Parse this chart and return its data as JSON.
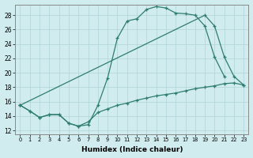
{
  "xlabel": "Humidex (Indice chaleur)",
  "bg_color": "#d0ecee",
  "line_color": "#2e7d6e",
  "grid_color": "#b0d4d8",
  "xlim": [
    -0.5,
    23.5
  ],
  "ylim": [
    11.5,
    29.5
  ],
  "xticks": [
    0,
    1,
    2,
    3,
    4,
    5,
    6,
    7,
    8,
    9,
    10,
    11,
    12,
    13,
    14,
    15,
    16,
    17,
    18,
    19,
    20,
    21,
    22,
    23
  ],
  "yticks": [
    12,
    14,
    16,
    18,
    20,
    22,
    24,
    26,
    28
  ],
  "series": [
    {
      "x": [
        0,
        1,
        2,
        3,
        4,
        5,
        6,
        7,
        8,
        9,
        10,
        11,
        12,
        13,
        14,
        15,
        16,
        17,
        18,
        19,
        20,
        21
      ],
      "y": [
        15.5,
        14.7,
        13.8,
        14.2,
        14.2,
        13.0,
        12.6,
        12.8,
        15.5,
        19.3,
        24.8,
        27.2,
        27.5,
        28.8,
        29.2,
        29.0,
        28.3,
        28.2,
        28.0,
        26.5,
        22.2,
        19.5
      ]
    },
    {
      "x": [
        0,
        1,
        2,
        3,
        4,
        5,
        6,
        7,
        8,
        9,
        10,
        11,
        12,
        13,
        14,
        15,
        16,
        17,
        18,
        19,
        20,
        21,
        22,
        23
      ],
      "y": [
        15.5,
        14.7,
        13.8,
        14.2,
        14.2,
        13.0,
        12.6,
        13.2,
        14.5,
        15.0,
        15.5,
        15.8,
        16.2,
        16.5,
        16.8,
        17.0,
        17.2,
        17.5,
        17.8,
        18.0,
        18.2,
        18.5,
        18.6,
        18.3
      ]
    },
    {
      "x": [
        0,
        19,
        20,
        21,
        22,
        23
      ],
      "y": [
        15.5,
        28.0,
        26.5,
        22.2,
        19.5,
        18.3
      ]
    }
  ]
}
